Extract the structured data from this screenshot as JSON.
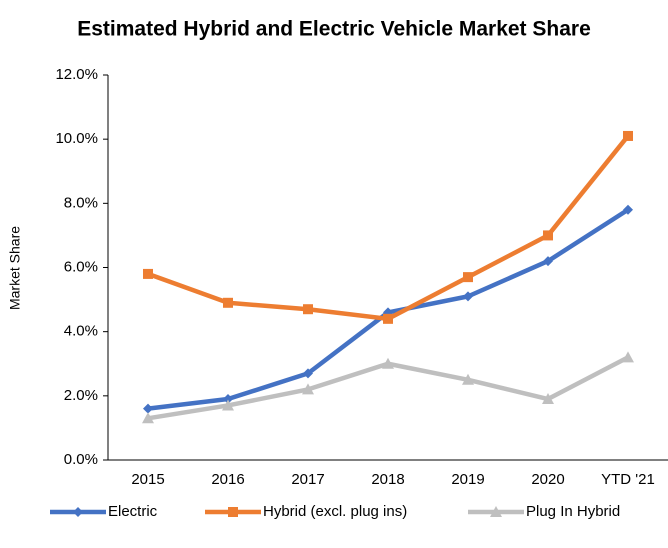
{
  "chart_data": {
    "type": "line",
    "title": "Estimated Hybrid and Electric Vehicle Market Share",
    "y_label": "Market Share",
    "categories": [
      "2015",
      "2016",
      "2017",
      "2018",
      "2019",
      "2020",
      "YTD '21"
    ],
    "series": [
      {
        "name": "Electric",
        "color": "#4472c4",
        "marker": "diamond",
        "values": [
          1.6,
          1.9,
          2.7,
          4.6,
          5.1,
          6.2,
          7.8
        ]
      },
      {
        "name": "Hybrid (excl. plug ins)",
        "color": "#ed7d31",
        "marker": "square",
        "values": [
          5.8,
          4.9,
          4.7,
          4.4,
          5.7,
          7.0,
          10.1
        ]
      },
      {
        "name": "Plug In Hybrid",
        "color": "#bfbfbf",
        "marker": "triangle",
        "values": [
          1.3,
          1.7,
          2.2,
          3.0,
          2.5,
          1.9,
          3.2
        ]
      }
    ],
    "ylim": [
      0,
      12
    ],
    "yticks": [
      {
        "value": 0,
        "label": "0.0%"
      },
      {
        "value": 2,
        "label": "2.0%"
      },
      {
        "value": 4,
        "label": "4.0%"
      },
      {
        "value": 6,
        "label": "6.0%"
      },
      {
        "value": 8,
        "label": "8.0%"
      },
      {
        "value": 10,
        "label": "10.0%"
      },
      {
        "value": 12,
        "label": "12.0%"
      }
    ],
    "legend": "bottom"
  }
}
